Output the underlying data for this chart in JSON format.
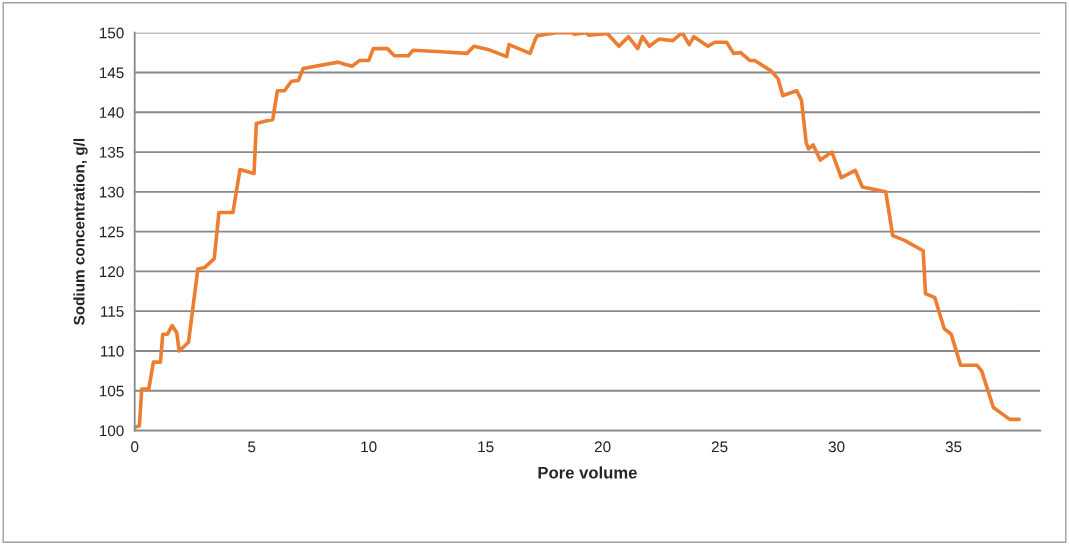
{
  "chart_data": {
    "type": "line",
    "xlabel": "Pore volume",
    "ylabel": "Sodium concentration, g/l",
    "xlim": [
      0,
      38.7
    ],
    "xticks": [
      0,
      5,
      10,
      15,
      20,
      25,
      30,
      35
    ],
    "ylim": [
      100,
      150
    ],
    "yticks": [
      100,
      105,
      110,
      115,
      120,
      125,
      130,
      135,
      140,
      145,
      150
    ],
    "grid": "y",
    "legend": false,
    "marker": "none",
    "line_style": "solid",
    "series": [
      {
        "color": "#ed7d31",
        "x": [
          0.0,
          0.2,
          0.3,
          0.6,
          0.8,
          1.1,
          1.2,
          1.4,
          1.6,
          1.8,
          1.9,
          2.3,
          2.7,
          3.0,
          3.4,
          3.6,
          4.2,
          4.5,
          5.1,
          5.2,
          5.6,
          5.9,
          6.1,
          6.4,
          6.7,
          7.0,
          7.2,
          8.7,
          9.0,
          9.3,
          9.6,
          10.0,
          10.2,
          10.8,
          11.1,
          11.7,
          11.9,
          13.1,
          14.2,
          14.5,
          15.1,
          15.9,
          16.0,
          16.9,
          17.1,
          17.2,
          17.6,
          18.0,
          18.7,
          18.8,
          19.3,
          19.4,
          19.9,
          20.2,
          20.7,
          21.1,
          21.5,
          21.7,
          22.0,
          22.4,
          23.0,
          23.2,
          23.4,
          23.7,
          23.9,
          24.5,
          24.8,
          25.3,
          25.6,
          25.9,
          26.3,
          26.5,
          27.2,
          27.5,
          27.7,
          28.3,
          28.5,
          28.7,
          28.8,
          29.0,
          29.3,
          29.8,
          30.2,
          30.8,
          31.1,
          32.1,
          32.4,
          32.9,
          33.7,
          33.8,
          34.2,
          34.6,
          34.9,
          35.3,
          36.0,
          36.2,
          36.7,
          37.4,
          37.8
        ],
        "values": [
          100.4,
          100.6,
          105.2,
          105.2,
          108.6,
          108.6,
          112.1,
          112.1,
          113.2,
          112.3,
          110.0,
          111.1,
          120.3,
          120.5,
          121.6,
          127.4,
          127.4,
          132.8,
          132.3,
          138.6,
          138.9,
          139.1,
          142.7,
          142.7,
          143.9,
          144.0,
          145.5,
          146.3,
          146.0,
          145.8,
          146.5,
          146.5,
          148.0,
          148.0,
          147.1,
          147.1,
          147.8,
          147.6,
          147.4,
          148.3,
          147.9,
          147.0,
          148.5,
          147.4,
          149.0,
          149.6,
          149.8,
          150.0,
          150.0,
          149.8,
          150.0,
          149.7,
          149.8,
          149.9,
          148.3,
          149.5,
          148.0,
          149.5,
          148.3,
          149.2,
          149.0,
          149.5,
          150.0,
          148.5,
          149.5,
          148.3,
          148.8,
          148.8,
          147.4,
          147.5,
          146.5,
          146.5,
          145.2,
          144.2,
          142.1,
          142.7,
          141.5,
          136.2,
          135.4,
          135.9,
          134.0,
          135.0,
          131.8,
          132.7,
          130.6,
          130.0,
          124.5,
          123.9,
          122.6,
          117.2,
          116.7,
          112.8,
          112.1,
          108.2,
          108.2,
          107.5,
          102.9,
          101.4,
          101.4
        ]
      }
    ]
  }
}
